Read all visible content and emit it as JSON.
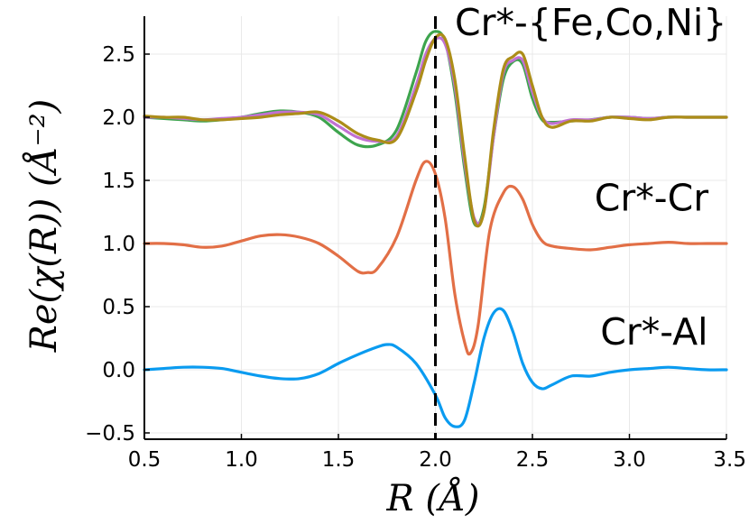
{
  "chart_data": {
    "type": "line",
    "title": "",
    "xlabel": "R (Å)",
    "ylabel": "Re(χ(R)) (Å⁻²)",
    "xlim": [
      0.5,
      3.5
    ],
    "ylim": [
      -0.55,
      2.8
    ],
    "grid": true,
    "xticks": [
      0.5,
      1.0,
      1.5,
      2.0,
      2.5,
      3.0,
      3.5
    ],
    "xtick_labels": [
      "0.5",
      "1.0",
      "1.5",
      "2.0",
      "2.5",
      "3.0",
      "3.5"
    ],
    "yticks": [
      -0.5,
      0.0,
      0.5,
      1.0,
      1.5,
      2.0,
      2.5
    ],
    "ytick_labels": [
      "−0.5",
      "0.0",
      "0.5",
      "1.0",
      "1.5",
      "2.0",
      "2.5"
    ],
    "vline": {
      "x": 2.0,
      "style": "dashed",
      "color": "#000000"
    },
    "annotations": [
      {
        "text": "Cr*-{Fe,Co,Ni}",
        "x": 2.1,
        "y": 2.65
      },
      {
        "text": "Cr*-Cr",
        "x": 2.82,
        "y": 1.26
      },
      {
        "text": "Cr*-Al",
        "x": 2.85,
        "y": 0.2
      }
    ],
    "series": [
      {
        "name": "Cr*-Al",
        "color": "#0a9bf0",
        "x": [
          0.5,
          0.6,
          0.7,
          0.8,
          0.9,
          1.0,
          1.1,
          1.2,
          1.3,
          1.4,
          1.5,
          1.6,
          1.7,
          1.75,
          1.8,
          1.9,
          2.0,
          2.05,
          2.1,
          2.15,
          2.2,
          2.25,
          2.3,
          2.35,
          2.4,
          2.45,
          2.5,
          2.55,
          2.6,
          2.7,
          2.8,
          2.9,
          3.0,
          3.1,
          3.2,
          3.3,
          3.4,
          3.5
        ],
        "y": [
          0.0,
          0.01,
          0.02,
          0.02,
          0.01,
          -0.02,
          -0.05,
          -0.07,
          -0.07,
          -0.03,
          0.05,
          0.12,
          0.18,
          0.2,
          0.18,
          0.05,
          -0.2,
          -0.38,
          -0.45,
          -0.4,
          -0.1,
          0.25,
          0.45,
          0.47,
          0.3,
          0.05,
          -0.1,
          -0.15,
          -0.12,
          -0.05,
          -0.05,
          -0.02,
          0.0,
          0.01,
          0.02,
          0.01,
          0.0,
          0.0
        ]
      },
      {
        "name": "Cr*-Cr",
        "color": "#e26f46",
        "x": [
          0.5,
          0.6,
          0.7,
          0.8,
          0.9,
          1.0,
          1.1,
          1.2,
          1.3,
          1.4,
          1.5,
          1.6,
          1.65,
          1.7,
          1.8,
          1.9,
          1.95,
          2.0,
          2.05,
          2.1,
          2.15,
          2.18,
          2.22,
          2.28,
          2.35,
          2.4,
          2.45,
          2.5,
          2.55,
          2.6,
          2.7,
          2.8,
          2.9,
          3.0,
          3.1,
          3.2,
          3.3,
          3.4,
          3.5
        ],
        "y": [
          1.0,
          1.0,
          0.99,
          0.97,
          0.98,
          1.02,
          1.06,
          1.07,
          1.05,
          1.0,
          0.9,
          0.78,
          0.77,
          0.8,
          1.05,
          1.5,
          1.65,
          1.55,
          1.2,
          0.6,
          0.22,
          0.13,
          0.35,
          1.1,
          1.4,
          1.45,
          1.35,
          1.15,
          1.02,
          0.98,
          0.96,
          0.95,
          0.97,
          0.99,
          1.0,
          1.01,
          1.0,
          1.0,
          1.0
        ]
      },
      {
        "name": "Cr*-Fe",
        "color": "#3da44d",
        "x": [
          0.5,
          0.6,
          0.7,
          0.8,
          0.9,
          1.0,
          1.1,
          1.2,
          1.3,
          1.4,
          1.5,
          1.6,
          1.7,
          1.8,
          1.9,
          1.95,
          2.0,
          2.05,
          2.1,
          2.15,
          2.2,
          2.25,
          2.3,
          2.35,
          2.4,
          2.45,
          2.5,
          2.55,
          2.6,
          2.7,
          2.8,
          2.9,
          3.0,
          3.1,
          3.2,
          3.3,
          3.4,
          3.5
        ],
        "y": [
          2.0,
          1.99,
          1.98,
          1.97,
          1.98,
          2.0,
          2.03,
          2.05,
          2.04,
          2.0,
          1.88,
          1.78,
          1.78,
          1.9,
          2.35,
          2.6,
          2.68,
          2.6,
          2.2,
          1.6,
          1.16,
          1.28,
          1.85,
          2.3,
          2.44,
          2.42,
          2.15,
          1.98,
          1.96,
          1.97,
          1.98,
          2.0,
          2.0,
          1.99,
          2.0,
          2.0,
          2.0,
          2.0
        ]
      },
      {
        "name": "Cr*-Co",
        "color": "#c171d2",
        "x": [
          0.5,
          0.6,
          0.7,
          0.8,
          0.9,
          1.0,
          1.1,
          1.2,
          1.3,
          1.4,
          1.5,
          1.6,
          1.7,
          1.8,
          1.9,
          1.95,
          2.0,
          2.05,
          2.1,
          2.15,
          2.2,
          2.25,
          2.3,
          2.35,
          2.4,
          2.45,
          2.5,
          2.55,
          2.6,
          2.7,
          2.8,
          2.9,
          3.0,
          3.1,
          3.2,
          3.3,
          3.4,
          3.5
        ],
        "y": [
          2.0,
          2.0,
          1.99,
          1.98,
          1.99,
          2.0,
          2.02,
          2.04,
          2.04,
          2.02,
          1.93,
          1.84,
          1.81,
          1.85,
          2.25,
          2.5,
          2.62,
          2.58,
          2.25,
          1.65,
          1.2,
          1.25,
          1.85,
          2.35,
          2.45,
          2.45,
          2.2,
          2.0,
          1.95,
          1.98,
          1.98,
          2.0,
          2.0,
          1.99,
          2.0,
          2.0,
          2.0,
          2.0
        ]
      },
      {
        "name": "Cr*-Ni",
        "color": "#ac8d18",
        "x": [
          0.5,
          0.6,
          0.7,
          0.8,
          0.9,
          1.0,
          1.1,
          1.2,
          1.3,
          1.4,
          1.5,
          1.6,
          1.7,
          1.8,
          1.9,
          1.95,
          2.0,
          2.05,
          2.1,
          2.15,
          2.2,
          2.25,
          2.3,
          2.35,
          2.4,
          2.45,
          2.5,
          2.55,
          2.6,
          2.7,
          2.8,
          2.9,
          3.0,
          3.1,
          3.2,
          3.3,
          3.4,
          3.5
        ],
        "y": [
          2.01,
          2.0,
          2.0,
          1.98,
          1.98,
          1.99,
          2.0,
          2.02,
          2.03,
          2.04,
          1.97,
          1.87,
          1.82,
          1.83,
          2.2,
          2.45,
          2.63,
          2.62,
          2.3,
          1.7,
          1.18,
          1.25,
          1.9,
          2.38,
          2.48,
          2.5,
          2.25,
          2.0,
          1.92,
          1.97,
          1.97,
          2.0,
          1.99,
          1.98,
          2.0,
          2.0,
          2.0,
          2.0
        ]
      }
    ]
  }
}
